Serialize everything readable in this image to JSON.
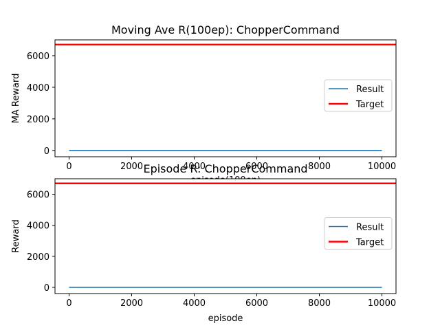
{
  "chart_data": [
    {
      "type": "line",
      "title": "Moving Ave R(100ep): ChopperCommand",
      "xlabel": "episode(100ep)",
      "ylabel": "MA Reward",
      "xlim": [
        -450,
        10450
      ],
      "ylim": [
        -400,
        7000
      ],
      "xticks": [
        "0",
        "2000",
        "4000",
        "6000",
        "8000",
        "10000"
      ],
      "yticks": [
        "0",
        "2000",
        "4000",
        "6000"
      ],
      "grid": false,
      "legend_position": "center-right",
      "series": [
        {
          "name": "Result",
          "color": "#1f77b4",
          "x": [
            0,
            10000
          ],
          "y": [
            0,
            0
          ]
        },
        {
          "name": "Target",
          "color": "#ff0000",
          "x": [
            -450,
            10450
          ],
          "y": [
            6700,
            6700
          ]
        }
      ]
    },
    {
      "type": "line",
      "title": "Episode R: ChopperCommand",
      "xlabel": "episode",
      "ylabel": "Reward",
      "xlim": [
        -450,
        10450
      ],
      "ylim": [
        -400,
        7000
      ],
      "xticks": [
        "0",
        "2000",
        "4000",
        "6000",
        "8000",
        "10000"
      ],
      "yticks": [
        "0",
        "2000",
        "4000",
        "6000"
      ],
      "grid": false,
      "legend_position": "center-right",
      "series": [
        {
          "name": "Result",
          "color": "#1f77b4",
          "x": [
            0,
            10000
          ],
          "y": [
            0,
            0
          ]
        },
        {
          "name": "Target",
          "color": "#ff0000",
          "x": [
            -450,
            10450
          ],
          "y": [
            6700,
            6700
          ]
        }
      ]
    }
  ]
}
